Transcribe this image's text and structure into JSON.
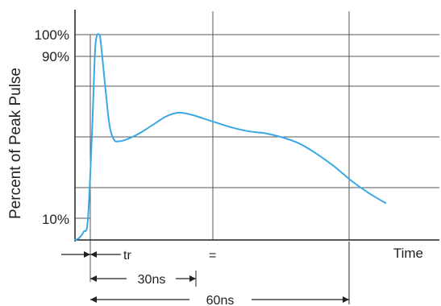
{
  "chart_data": {
    "type": "line",
    "ylabel": "Percent of Peak Pulse",
    "xlabel": "Time",
    "y_ticks": [
      "100%",
      "90%",
      "10%"
    ],
    "x_ticks": [],
    "grid": true,
    "line_color": "#3aa7e6",
    "series": [
      {
        "x": [
          0,
          1,
          2,
          3,
          4,
          4.6,
          5,
          5.6,
          6,
          7,
          8,
          9,
          10,
          12,
          15,
          18,
          21,
          24,
          27,
          30,
          33,
          36,
          40,
          44,
          48,
          52,
          56,
          60,
          64,
          68,
          72
        ],
        "y": [
          0,
          1,
          4,
          10,
          55,
          90,
          99,
          100,
          96,
          75,
          56,
          49,
          48,
          49,
          52,
          56,
          60,
          62,
          61,
          59,
          57,
          55,
          53,
          52,
          50,
          47,
          42,
          36,
          29,
          23,
          18
        ]
      }
    ],
    "annotations": {
      "tr": "tr",
      "equals": "=",
      "t30": "30ns",
      "t60": "60ns"
    }
  }
}
